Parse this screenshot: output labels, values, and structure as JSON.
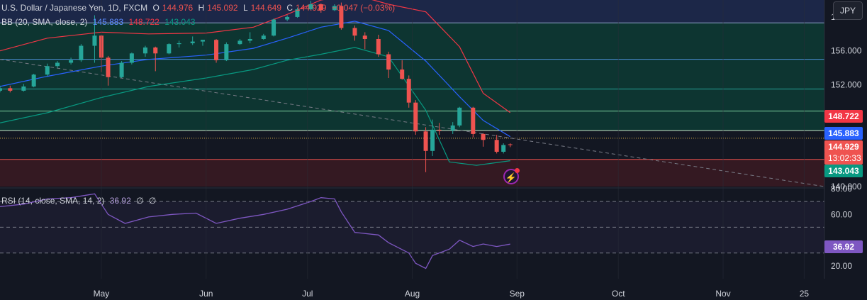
{
  "header": {
    "symbol": "U.S. Dollar / Japanese Yen, 1D, FXCM",
    "o_label": "O",
    "o_value": "144.976",
    "h_label": "H",
    "h_value": "145.092",
    "l_label": "L",
    "l_value": "144.649",
    "c_label": "C",
    "c_value": "144.929",
    "change": "−0.047 (−0.03%)",
    "bb_title": "BB (20, SMA, close, 2)",
    "bb_basis": "145.883",
    "bb_upper": "148.722",
    "bb_lower": "143.043",
    "rsi_title": "RSI (14, close, SMA, 14, 2)",
    "rsi_value": "36.92",
    "rsi_extra1": "∅",
    "rsi_extra2": "∅"
  },
  "currency_button": "JPY",
  "price_labels": {
    "upper": "148.722",
    "basis": "145.883",
    "last": "144.929",
    "countdown": "13:02:33",
    "lower": "143.043",
    "rsi": "36.92"
  },
  "colors": {
    "up": "#26a69a",
    "down": "#ef5350",
    "bb_upper": "#f23645",
    "bb_basis": "#2962ff",
    "bb_lower": "#089981",
    "rsi": "#7e57c2",
    "background": "#131722",
    "zone_blue": "#1e2a4f",
    "zone_teal": "#0d3b34",
    "zone_red": "#3b1a22"
  },
  "chart_data": [
    {
      "type": "candlestick",
      "title": "U.S. Dollar / Japanese Yen, 1D, FXCM",
      "ylim": [
        140.0,
        162.0
      ],
      "y_ticks": [
        "160.000",
        "156.000",
        "152.000",
        "148.000",
        "140.000"
      ],
      "x_ticks": [
        "May",
        "Jun",
        "Jul",
        "Aug",
        "Sep",
        "Oct",
        "Nov",
        "25"
      ],
      "x_tick_dates": [
        "2024-05-01",
        "2024-06-01",
        "2024-07-01",
        "2024-08-01",
        "2024-09-01",
        "2024-10-01",
        "2024-11-01",
        "2024-11-25"
      ],
      "x_range": [
        "2024-04-01",
        "2024-12-01"
      ],
      "horizontal_levels": [
        159.3,
        155.0,
        151.5,
        148.9,
        146.6,
        145.7,
        143.2
      ],
      "zones": [
        {
          "from": 159.3,
          "to": 162.0,
          "color": "blue"
        },
        {
          "from": 146.6,
          "to": 159.3,
          "color": "teal"
        },
        {
          "from": 139.0,
          "to": 143.2,
          "color": "red"
        }
      ],
      "trendline": {
        "start": [
          "2024-04-01",
          155.0
        ],
        "end": [
          "2024-12-01",
          140.0
        ]
      },
      "series": [
        {
          "name": "Price",
          "kind": "candles",
          "points": [
            {
              "date": "2024-04-01",
              "o": 151.3,
              "h": 151.9,
              "l": 151.1,
              "c": 151.6
            },
            {
              "date": "2024-04-04",
              "o": 151.6,
              "h": 151.9,
              "l": 151.1,
              "c": 151.3
            },
            {
              "date": "2024-04-08",
              "o": 151.3,
              "h": 152.1,
              "l": 151.2,
              "c": 151.8
            },
            {
              "date": "2024-04-11",
              "o": 151.8,
              "h": 153.3,
              "l": 151.7,
              "c": 153.2
            },
            {
              "date": "2024-04-15",
              "o": 153.2,
              "h": 154.5,
              "l": 153.0,
              "c": 154.2
            },
            {
              "date": "2024-04-18",
              "o": 154.2,
              "h": 154.8,
              "l": 154.0,
              "c": 154.6
            },
            {
              "date": "2024-04-22",
              "o": 154.6,
              "h": 155.2,
              "l": 154.4,
              "c": 154.9
            },
            {
              "date": "2024-04-25",
              "o": 154.9,
              "h": 156.8,
              "l": 154.7,
              "c": 156.6
            },
            {
              "date": "2024-04-29",
              "o": 156.6,
              "h": 160.2,
              "l": 154.6,
              "c": 157.8
            },
            {
              "date": "2024-05-01",
              "o": 157.8,
              "h": 157.9,
              "l": 153.5,
              "c": 155.2
            },
            {
              "date": "2024-05-03",
              "o": 155.2,
              "h": 155.4,
              "l": 151.9,
              "c": 152.9
            },
            {
              "date": "2024-05-07",
              "o": 152.9,
              "h": 154.8,
              "l": 152.8,
              "c": 154.6
            },
            {
              "date": "2024-05-10",
              "o": 154.6,
              "h": 155.8,
              "l": 154.4,
              "c": 155.7
            },
            {
              "date": "2024-05-14",
              "o": 155.7,
              "h": 156.6,
              "l": 155.3,
              "c": 156.4
            },
            {
              "date": "2024-05-17",
              "o": 156.4,
              "h": 156.5,
              "l": 153.6,
              "c": 155.7
            },
            {
              "date": "2024-05-21",
              "o": 155.7,
              "h": 156.9,
              "l": 155.6,
              "c": 156.8
            },
            {
              "date": "2024-05-24",
              "o": 156.8,
              "h": 157.2,
              "l": 156.4,
              "c": 156.9
            },
            {
              "date": "2024-05-28",
              "o": 156.9,
              "h": 157.7,
              "l": 156.7,
              "c": 157.1
            },
            {
              "date": "2024-05-31",
              "o": 157.1,
              "h": 157.3,
              "l": 156.6,
              "c": 157.3
            },
            {
              "date": "2024-06-04",
              "o": 157.3,
              "h": 157.4,
              "l": 154.6,
              "c": 154.9
            },
            {
              "date": "2024-06-07",
              "o": 154.9,
              "h": 157.0,
              "l": 154.8,
              "c": 156.8
            },
            {
              "date": "2024-06-11",
              "o": 156.8,
              "h": 157.4,
              "l": 156.7,
              "c": 157.2
            },
            {
              "date": "2024-06-14",
              "o": 157.2,
              "h": 158.2,
              "l": 156.9,
              "c": 157.4
            },
            {
              "date": "2024-06-18",
              "o": 157.4,
              "h": 158.0,
              "l": 157.3,
              "c": 157.8
            },
            {
              "date": "2024-06-21",
              "o": 157.8,
              "h": 159.8,
              "l": 157.7,
              "c": 159.7
            },
            {
              "date": "2024-06-25",
              "o": 159.7,
              "h": 160.2,
              "l": 159.5,
              "c": 160.0
            },
            {
              "date": "2024-06-28",
              "o": 160.0,
              "h": 161.1,
              "l": 159.9,
              "c": 160.9
            },
            {
              "date": "2024-07-02",
              "o": 160.9,
              "h": 161.9,
              "l": 160.8,
              "c": 161.5
            },
            {
              "date": "2024-07-05",
              "o": 161.5,
              "h": 161.6,
              "l": 160.5,
              "c": 160.8
            },
            {
              "date": "2024-07-09",
              "o": 160.8,
              "h": 161.5,
              "l": 160.7,
              "c": 161.3
            },
            {
              "date": "2024-07-11",
              "o": 161.3,
              "h": 161.7,
              "l": 158.5,
              "c": 158.7
            },
            {
              "date": "2024-07-15",
              "o": 158.7,
              "h": 159.0,
              "l": 157.2,
              "c": 157.8
            },
            {
              "date": "2024-07-18",
              "o": 157.8,
              "h": 158.2,
              "l": 156.2,
              "c": 157.4
            },
            {
              "date": "2024-07-22",
              "o": 157.4,
              "h": 157.9,
              "l": 155.3,
              "c": 155.6
            },
            {
              "date": "2024-07-25",
              "o": 155.6,
              "h": 155.9,
              "l": 152.8,
              "c": 153.8
            },
            {
              "date": "2024-07-29",
              "o": 153.8,
              "h": 154.9,
              "l": 152.6,
              "c": 152.7
            },
            {
              "date": "2024-07-31",
              "o": 152.7,
              "h": 153.1,
              "l": 149.3,
              "c": 149.9
            },
            {
              "date": "2024-08-02",
              "o": 149.9,
              "h": 150.2,
              "l": 146.1,
              "c": 146.5
            },
            {
              "date": "2024-08-05",
              "o": 146.5,
              "h": 147.0,
              "l": 141.7,
              "c": 144.2
            },
            {
              "date": "2024-08-07",
              "o": 144.2,
              "h": 147.9,
              "l": 143.6,
              "c": 146.7
            },
            {
              "date": "2024-08-09",
              "o": 146.7,
              "h": 147.5,
              "l": 146.1,
              "c": 146.6
            },
            {
              "date": "2024-08-13",
              "o": 146.6,
              "h": 147.6,
              "l": 146.2,
              "c": 147.2
            },
            {
              "date": "2024-08-15",
              "o": 147.2,
              "h": 149.4,
              "l": 147.0,
              "c": 149.3
            },
            {
              "date": "2024-08-19",
              "o": 149.3,
              "h": 149.4,
              "l": 145.8,
              "c": 146.2
            },
            {
              "date": "2024-08-22",
              "o": 146.2,
              "h": 146.3,
              "l": 144.7,
              "c": 145.5
            },
            {
              "date": "2024-08-26",
              "o": 145.5,
              "h": 146.1,
              "l": 143.9,
              "c": 144.1
            },
            {
              "date": "2024-08-28",
              "o": 144.1,
              "h": 145.1,
              "l": 143.9,
              "c": 144.9
            },
            {
              "date": "2024-08-30",
              "o": 144.976,
              "h": 145.092,
              "l": 144.649,
              "c": 144.929
            }
          ]
        },
        {
          "name": "BB Upper",
          "kind": "line",
          "color": "bb_upper",
          "points": [
            [
              "2024-04-01",
              156.0
            ],
            [
              "2024-04-15",
              157.5
            ],
            [
              "2024-05-01",
              158.2
            ],
            [
              "2024-05-15",
              158.0
            ],
            [
              "2024-06-01",
              158.1
            ],
            [
              "2024-06-15",
              158.8
            ],
            [
              "2024-06-25",
              160.3
            ],
            [
              "2024-07-05",
              162.0
            ],
            [
              "2024-07-15",
              162.6
            ],
            [
              "2024-07-25",
              161.5
            ],
            [
              "2024-08-05",
              160.6
            ],
            [
              "2024-08-15",
              156.5
            ],
            [
              "2024-08-22",
              151.0
            ],
            [
              "2024-08-30",
              148.722
            ]
          ]
        },
        {
          "name": "BB Basis",
          "kind": "line",
          "color": "bb_basis",
          "points": [
            [
              "2024-04-01",
              151.8
            ],
            [
              "2024-04-15",
              153.0
            ],
            [
              "2024-05-01",
              154.2
            ],
            [
              "2024-05-15",
              155.0
            ],
            [
              "2024-06-01",
              155.5
            ],
            [
              "2024-06-15",
              156.3
            ],
            [
              "2024-06-25",
              157.5
            ],
            [
              "2024-07-05",
              158.8
            ],
            [
              "2024-07-15",
              159.5
            ],
            [
              "2024-07-25",
              158.4
            ],
            [
              "2024-08-05",
              154.8
            ],
            [
              "2024-08-15",
              150.6
            ],
            [
              "2024-08-22",
              147.8
            ],
            [
              "2024-08-30",
              145.883
            ]
          ]
        },
        {
          "name": "BB Lower",
          "kind": "line",
          "color": "bb_lower",
          "points": [
            [
              "2024-04-01",
              147.5
            ],
            [
              "2024-04-15",
              148.7
            ],
            [
              "2024-05-01",
              150.5
            ],
            [
              "2024-05-15",
              151.8
            ],
            [
              "2024-06-01",
              152.8
            ],
            [
              "2024-06-15",
              153.8
            ],
            [
              "2024-06-25",
              154.9
            ],
            [
              "2024-07-05",
              155.6
            ],
            [
              "2024-07-15",
              156.4
            ],
            [
              "2024-07-25",
              155.3
            ],
            [
              "2024-08-05",
              149.0
            ],
            [
              "2024-08-12",
              142.9
            ],
            [
              "2024-08-20",
              142.5
            ],
            [
              "2024-08-30",
              143.043
            ]
          ]
        }
      ]
    },
    {
      "type": "line",
      "title": "RSI (14, close, SMA, 14, 2)",
      "ylim": [
        10,
        80
      ],
      "y_ticks": [
        "80.00",
        "60.00",
        "20.00"
      ],
      "levels": [
        70,
        50,
        30
      ],
      "series": [
        {
          "name": "RSI",
          "points": [
            [
              "2024-04-01",
              66
            ],
            [
              "2024-04-08",
              68
            ],
            [
              "2024-04-15",
              72
            ],
            [
              "2024-04-22",
              73
            ],
            [
              "2024-04-29",
              76
            ],
            [
              "2024-05-03",
              60
            ],
            [
              "2024-05-08",
              53
            ],
            [
              "2024-05-15",
              58
            ],
            [
              "2024-05-22",
              60
            ],
            [
              "2024-05-29",
              61
            ],
            [
              "2024-06-04",
              53
            ],
            [
              "2024-06-11",
              57
            ],
            [
              "2024-06-18",
              60
            ],
            [
              "2024-06-25",
              64
            ],
            [
              "2024-07-02",
              70
            ],
            [
              "2024-07-05",
              73
            ],
            [
              "2024-07-09",
              72
            ],
            [
              "2024-07-11",
              62
            ],
            [
              "2024-07-15",
              46
            ],
            [
              "2024-07-22",
              44
            ],
            [
              "2024-07-25",
              38
            ],
            [
              "2024-07-31",
              30
            ],
            [
              "2024-08-02",
              22
            ],
            [
              "2024-08-05",
              18
            ],
            [
              "2024-08-07",
              28
            ],
            [
              "2024-08-12",
              33
            ],
            [
              "2024-08-15",
              40
            ],
            [
              "2024-08-19",
              35
            ],
            [
              "2024-08-22",
              37
            ],
            [
              "2024-08-26",
              35
            ],
            [
              "2024-08-30",
              36.92
            ]
          ]
        }
      ]
    }
  ]
}
